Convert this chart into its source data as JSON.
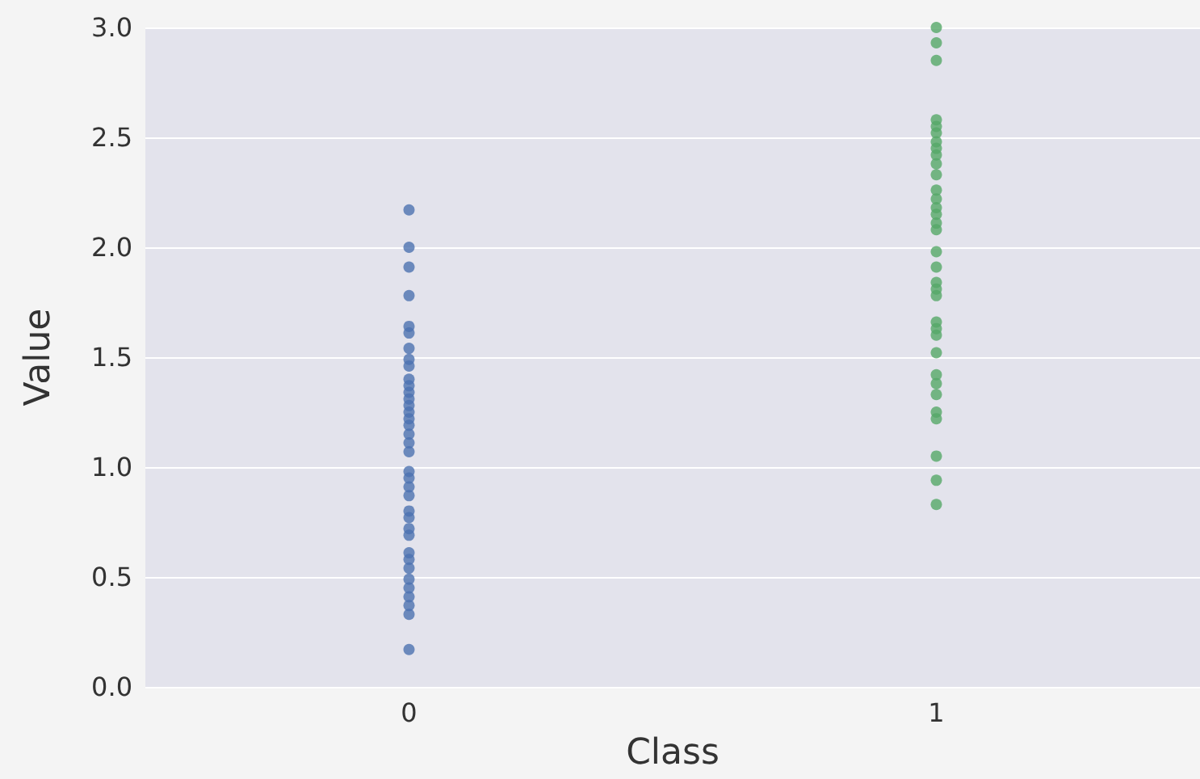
{
  "chart_data": {
    "type": "scatter",
    "xlabel": "Class",
    "ylabel": "Value",
    "categories": [
      "0",
      "1"
    ],
    "ylim": [
      0,
      3
    ],
    "yticks": [
      {
        "value": 0,
        "label": "0.0"
      },
      {
        "value": 0.5,
        "label": "0.5"
      },
      {
        "value": 1,
        "label": "1.0"
      },
      {
        "value": 1.5,
        "label": "1.5"
      },
      {
        "value": 2,
        "label": "2.0"
      },
      {
        "value": 2.5,
        "label": "2.5"
      },
      {
        "value": 3,
        "label": "3.0"
      }
    ],
    "grid": "y",
    "marker": "circle",
    "series": [
      {
        "color": "#4c72b0",
        "x": [
          "0",
          "0",
          "0",
          "0",
          "0",
          "0",
          "0",
          "0",
          "0",
          "0",
          "0",
          "0",
          "0",
          "0",
          "0",
          "0",
          "0",
          "0",
          "0",
          "0",
          "0",
          "0",
          "0",
          "0",
          "0",
          "0",
          "0",
          "0",
          "0",
          "0",
          "0",
          "0",
          "0",
          "0",
          "0",
          "0",
          "0"
        ],
        "values": [
          2.17,
          2.0,
          1.91,
          1.78,
          1.64,
          1.61,
          1.54,
          1.49,
          1.46,
          1.4,
          1.37,
          1.34,
          1.31,
          1.28,
          1.25,
          1.22,
          1.19,
          1.15,
          1.11,
          1.07,
          0.98,
          0.95,
          0.91,
          0.87,
          0.8,
          0.77,
          0.72,
          0.69,
          0.61,
          0.58,
          0.54,
          0.49,
          0.45,
          0.41,
          0.37,
          0.33,
          0.17
        ]
      },
      {
        "color": "#55a868",
        "x": [
          "1",
          "1",
          "1",
          "1",
          "1",
          "1",
          "1",
          "1",
          "1",
          "1",
          "1",
          "1",
          "1",
          "1",
          "1",
          "1",
          "1",
          "1",
          "1",
          "1",
          "1",
          "1",
          "1",
          "1",
          "1",
          "1",
          "1",
          "1",
          "1",
          "1",
          "1",
          "1",
          "1",
          "1",
          "1",
          "1",
          "1"
        ],
        "values": [
          3.0,
          null,
          2.93,
          2.85,
          2.58,
          2.55,
          2.52,
          2.48,
          2.45,
          2.42,
          2.38,
          2.33,
          null,
          2.26,
          2.22,
          2.18,
          2.15,
          2.11,
          2.08,
          1.98,
          1.91,
          1.84,
          1.81,
          1.78,
          1.66,
          1.63,
          1.6,
          null,
          1.52,
          1.42,
          1.38,
          1.33,
          1.25,
          1.22,
          1.05,
          0.94,
          0.83
        ]
      }
    ]
  }
}
